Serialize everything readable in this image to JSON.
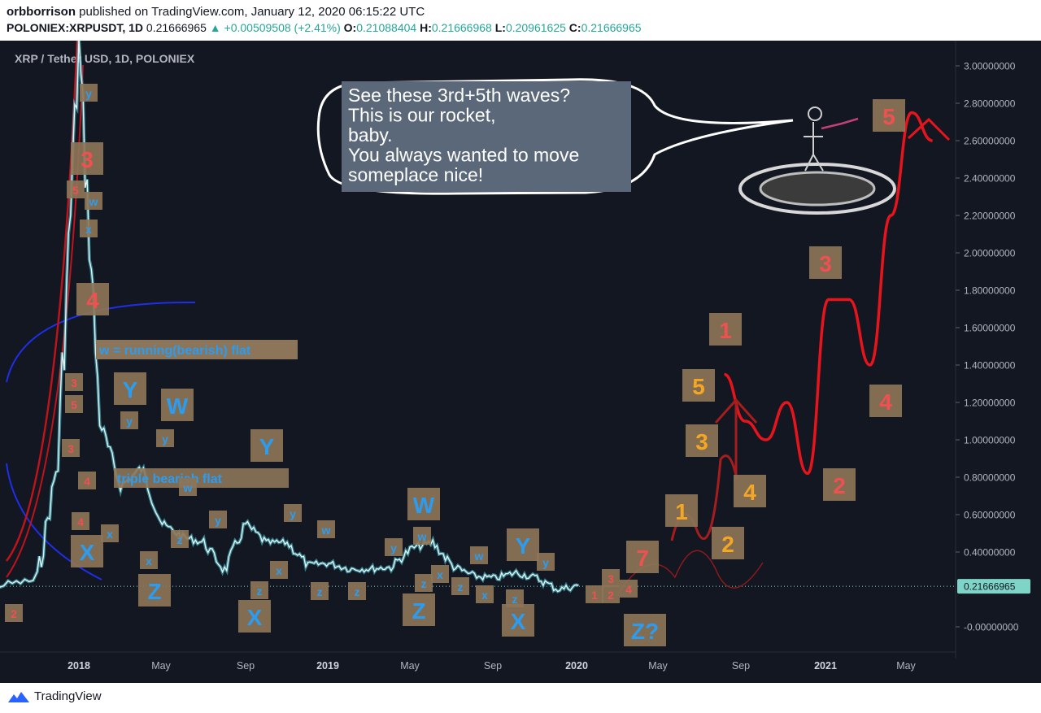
{
  "header": {
    "author": "orbborrison",
    "published": "published on TradingView.com, January 12, 2020 06:15:22 UTC",
    "symbol": "POLONIEX:XRPUSDT, 1D",
    "last": "0.21666965",
    "change": "▲ +0.00509508 (+2.41%)",
    "o_label": "O:",
    "o_value": "0.21088404",
    "h_label": "H:",
    "h_value": "0.21666968",
    "l_label": "L:",
    "l_value": "0.20961625",
    "c_label": "C:",
    "c_value": "0.21666965"
  },
  "colors": {
    "background": "#131722",
    "price_line": "#dff3f3",
    "price_glow": "#4fd0e0",
    "label_box": "#8c7558",
    "label_blue": "#2c9cf0",
    "label_red": "#f05050",
    "label_orange": "#f5a623",
    "projection": "#e8141c",
    "ema_red": "#c0131a",
    "arc_blue": "#1f2ee8",
    "last_badge": "#7fd4c8"
  },
  "chart_data": {
    "type": "line",
    "title": "XRP / Tether USD, 1D, POLONIEX",
    "xlabel": "",
    "ylabel": "",
    "ylim": [
      -0.1,
      3.1
    ],
    "y_ticks": [
      "3.00000000",
      "2.80000000",
      "2.60000000",
      "2.40000000",
      "2.20000000",
      "2.00000000",
      "1.80000000",
      "1.60000000",
      "1.40000000",
      "1.20000000",
      "1.00000000",
      "0.80000000",
      "0.60000000",
      "0.40000000",
      "0.21666965",
      "-0.00000000"
    ],
    "x_ticks": [
      {
        "label": "2018",
        "bold": true
      },
      {
        "label": "May",
        "bold": false
      },
      {
        "label": "Sep",
        "bold": false
      },
      {
        "label": "2019",
        "bold": true
      },
      {
        "label": "May",
        "bold": false
      },
      {
        "label": "Sep",
        "bold": false
      },
      {
        "label": "2020",
        "bold": true
      },
      {
        "label": "May",
        "bold": false
      },
      {
        "label": "Sep",
        "bold": false
      },
      {
        "label": "2021",
        "bold": true
      },
      {
        "label": "May",
        "bold": false
      }
    ],
    "last_price": 0.21666965,
    "series": [
      {
        "x": [
          "2017-06",
          "2017-09",
          "2017-11",
          "2017-12",
          "2018-01",
          "2018-02",
          "2018-03",
          "2018-04",
          "2018-05",
          "2018-06",
          "2018-07",
          "2018-08",
          "2018-09",
          "2018-10",
          "2018-11",
          "2018-12",
          "2019-01",
          "2019-02",
          "2019-03",
          "2019-04",
          "2019-05",
          "2019-06",
          "2019-07",
          "2019-08",
          "2019-09",
          "2019-10",
          "2019-11",
          "2019-12",
          "2020-01"
        ],
        "values": [
          0.25,
          0.22,
          0.25,
          0.9,
          3.1,
          1.1,
          0.75,
          0.85,
          0.55,
          0.48,
          0.45,
          0.3,
          0.55,
          0.45,
          0.45,
          0.33,
          0.34,
          0.31,
          0.31,
          0.32,
          0.42,
          0.45,
          0.32,
          0.27,
          0.26,
          0.29,
          0.26,
          0.2,
          0.22
        ]
      }
    ],
    "projection": {
      "x": [
        "2020-08",
        "2020-09",
        "2020-10",
        "2020-11",
        "2020-12",
        "2021-01",
        "2021-02",
        "2021-03",
        "2021-04",
        "2021-05",
        "2021-06"
      ],
      "values": [
        1.35,
        1.1,
        1.0,
        1.2,
        0.82,
        1.75,
        1.75,
        1.4,
        2.2,
        2.75,
        2.6
      ]
    }
  },
  "annotations": {
    "title_label": "XRP / Tether USD, 1D, POLONIEX",
    "running_flat": "w = running(bearish) flat",
    "bearish_flat": "triple bearish flat",
    "speech": [
      "See these 3rd+5th waves?",
      "This is our rocket,",
      "baby.",
      "You always wanted to move",
      "someplace nice!"
    ],
    "wave_labels": [
      {
        "t": "y",
        "c": "blue",
        "size": "s"
      },
      {
        "t": "3",
        "c": "red",
        "size": "l"
      },
      {
        "t": "5",
        "c": "red",
        "size": "s"
      },
      {
        "t": "w",
        "c": "blue",
        "size": "s"
      },
      {
        "t": "x",
        "c": "blue",
        "size": "s"
      },
      {
        "t": "4",
        "c": "red",
        "size": "l"
      },
      {
        "t": "3",
        "c": "red",
        "size": "s"
      },
      {
        "t": "5",
        "c": "red",
        "size": "s"
      },
      {
        "t": "3",
        "c": "red",
        "size": "s"
      },
      {
        "t": "4",
        "c": "red",
        "size": "s"
      },
      {
        "t": "4",
        "c": "red",
        "size": "s"
      },
      {
        "t": "2",
        "c": "red",
        "size": "s"
      },
      {
        "t": "Y",
        "c": "blue",
        "size": "l"
      },
      {
        "t": "W",
        "c": "blue",
        "size": "l"
      },
      {
        "t": "y",
        "c": "blue",
        "size": "s"
      },
      {
        "t": "y",
        "c": "blue",
        "size": "s"
      },
      {
        "t": "X",
        "c": "blue",
        "size": "l"
      },
      {
        "t": "Z",
        "c": "blue",
        "size": "l"
      },
      {
        "t": "z",
        "c": "blue",
        "size": "s"
      },
      {
        "t": "z",
        "c": "blue",
        "size": "s"
      },
      {
        "t": "x",
        "c": "blue",
        "size": "s"
      },
      {
        "t": "y",
        "c": "blue",
        "size": "s"
      },
      {
        "t": "w",
        "c": "blue",
        "size": "s"
      },
      {
        "t": "Y",
        "c": "blue",
        "size": "l"
      },
      {
        "t": "X",
        "c": "blue",
        "size": "l"
      },
      {
        "t": "z",
        "c": "blue",
        "size": "s"
      },
      {
        "t": "x",
        "c": "blue",
        "size": "s"
      },
      {
        "t": "y",
        "c": "blue",
        "size": "s"
      },
      {
        "t": "w",
        "c": "blue",
        "size": "s"
      },
      {
        "t": "z",
        "c": "blue",
        "size": "s"
      },
      {
        "t": "x",
        "c": "blue",
        "size": "s"
      },
      {
        "t": "W",
        "c": "blue",
        "size": "l"
      },
      {
        "t": "Z",
        "c": "blue",
        "size": "l"
      },
      {
        "t": "y",
        "c": "blue",
        "size": "s"
      },
      {
        "t": "w",
        "c": "blue",
        "size": "s"
      },
      {
        "t": "z",
        "c": "blue",
        "size": "s"
      },
      {
        "t": "x",
        "c": "blue",
        "size": "s"
      },
      {
        "t": "z",
        "c": "blue",
        "size": "s"
      },
      {
        "t": "Y",
        "c": "blue",
        "size": "l"
      },
      {
        "t": "X",
        "c": "blue",
        "size": "l"
      },
      {
        "t": "w",
        "c": "blue",
        "size": "s"
      },
      {
        "t": "x",
        "c": "blue",
        "size": "s"
      },
      {
        "t": "z",
        "c": "blue",
        "size": "s"
      },
      {
        "t": "y",
        "c": "blue",
        "size": "s"
      },
      {
        "t": "Z?",
        "c": "blue",
        "size": "l"
      },
      {
        "t": "1",
        "c": "orange",
        "size": "l"
      },
      {
        "t": "2",
        "c": "orange",
        "size": "l"
      },
      {
        "t": "3",
        "c": "orange",
        "size": "l"
      },
      {
        "t": "4",
        "c": "orange",
        "size": "l"
      },
      {
        "t": "5",
        "c": "orange",
        "size": "l"
      },
      {
        "t": "1",
        "c": "red",
        "size": "l"
      },
      {
        "t": "2",
        "c": "red",
        "size": "l"
      },
      {
        "t": "3",
        "c": "red",
        "size": "l"
      },
      {
        "t": "4",
        "c": "red",
        "size": "l"
      },
      {
        "t": "5",
        "c": "red",
        "size": "l"
      },
      {
        "t": "3",
        "c": "red",
        "size": "s"
      },
      {
        "t": "1",
        "c": "red",
        "size": "s"
      },
      {
        "t": "2",
        "c": "red",
        "size": "s"
      },
      {
        "t": "4",
        "c": "red",
        "size": "s"
      },
      {
        "t": "7",
        "c": "red",
        "size": "l"
      }
    ]
  },
  "footer": {
    "brand": "TradingView",
    "logo_icon": "tradingview-cloud-icon"
  }
}
